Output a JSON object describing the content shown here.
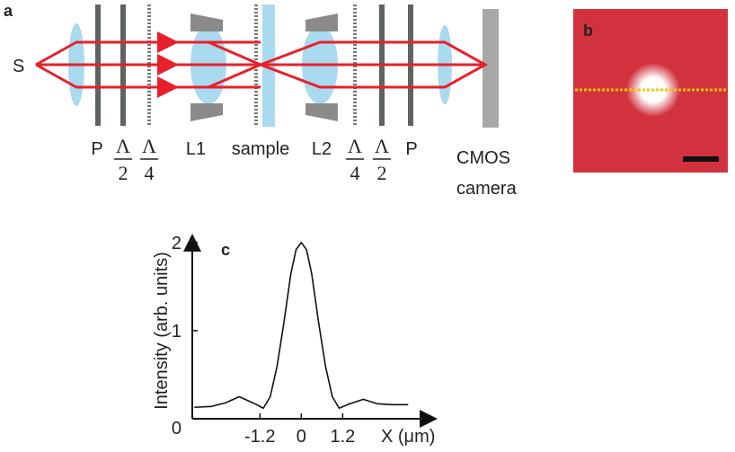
{
  "diagram": {
    "panel": "a",
    "source": "S",
    "elements": [
      "P",
      {
        "top": "Λ",
        "bottom": "2"
      },
      {
        "top": "Λ",
        "bottom": "4"
      },
      "L1",
      "sample",
      "L2",
      {
        "top": "Λ",
        "bottom": "4"
      },
      {
        "top": "Λ",
        "bottom": "2"
      },
      "P"
    ],
    "camera": [
      "CMOS",
      "camera"
    ]
  },
  "image": {
    "panel": "b"
  },
  "chart_data": {
    "type": "line",
    "panel": "c",
    "y_label": "Intensity (arb. units)",
    "x_label": "X (μm)",
    "x": [
      -3.1,
      -2.6,
      -2.2,
      -1.8,
      -1.4,
      -1.1,
      -0.9,
      -0.7,
      -0.5,
      -0.3,
      -0.15,
      0,
      0.15,
      0.3,
      0.5,
      0.7,
      0.9,
      1.1,
      1.4,
      1.8,
      2.2,
      2.6,
      3.1
    ],
    "values": [
      0.13,
      0.14,
      0.18,
      0.25,
      0.18,
      0.12,
      0.25,
      0.6,
      1.1,
      1.65,
      1.92,
      2.0,
      1.92,
      1.65,
      1.1,
      0.6,
      0.25,
      0.12,
      0.17,
      0.22,
      0.17,
      0.16,
      0.16
    ],
    "color": "#111111",
    "xlim": [
      -3.16,
      3.9
    ],
    "ylim": [
      0,
      2.08
    ],
    "xticks": [
      -1.2,
      0,
      1.2
    ],
    "yticks": [
      0,
      1,
      2
    ]
  }
}
